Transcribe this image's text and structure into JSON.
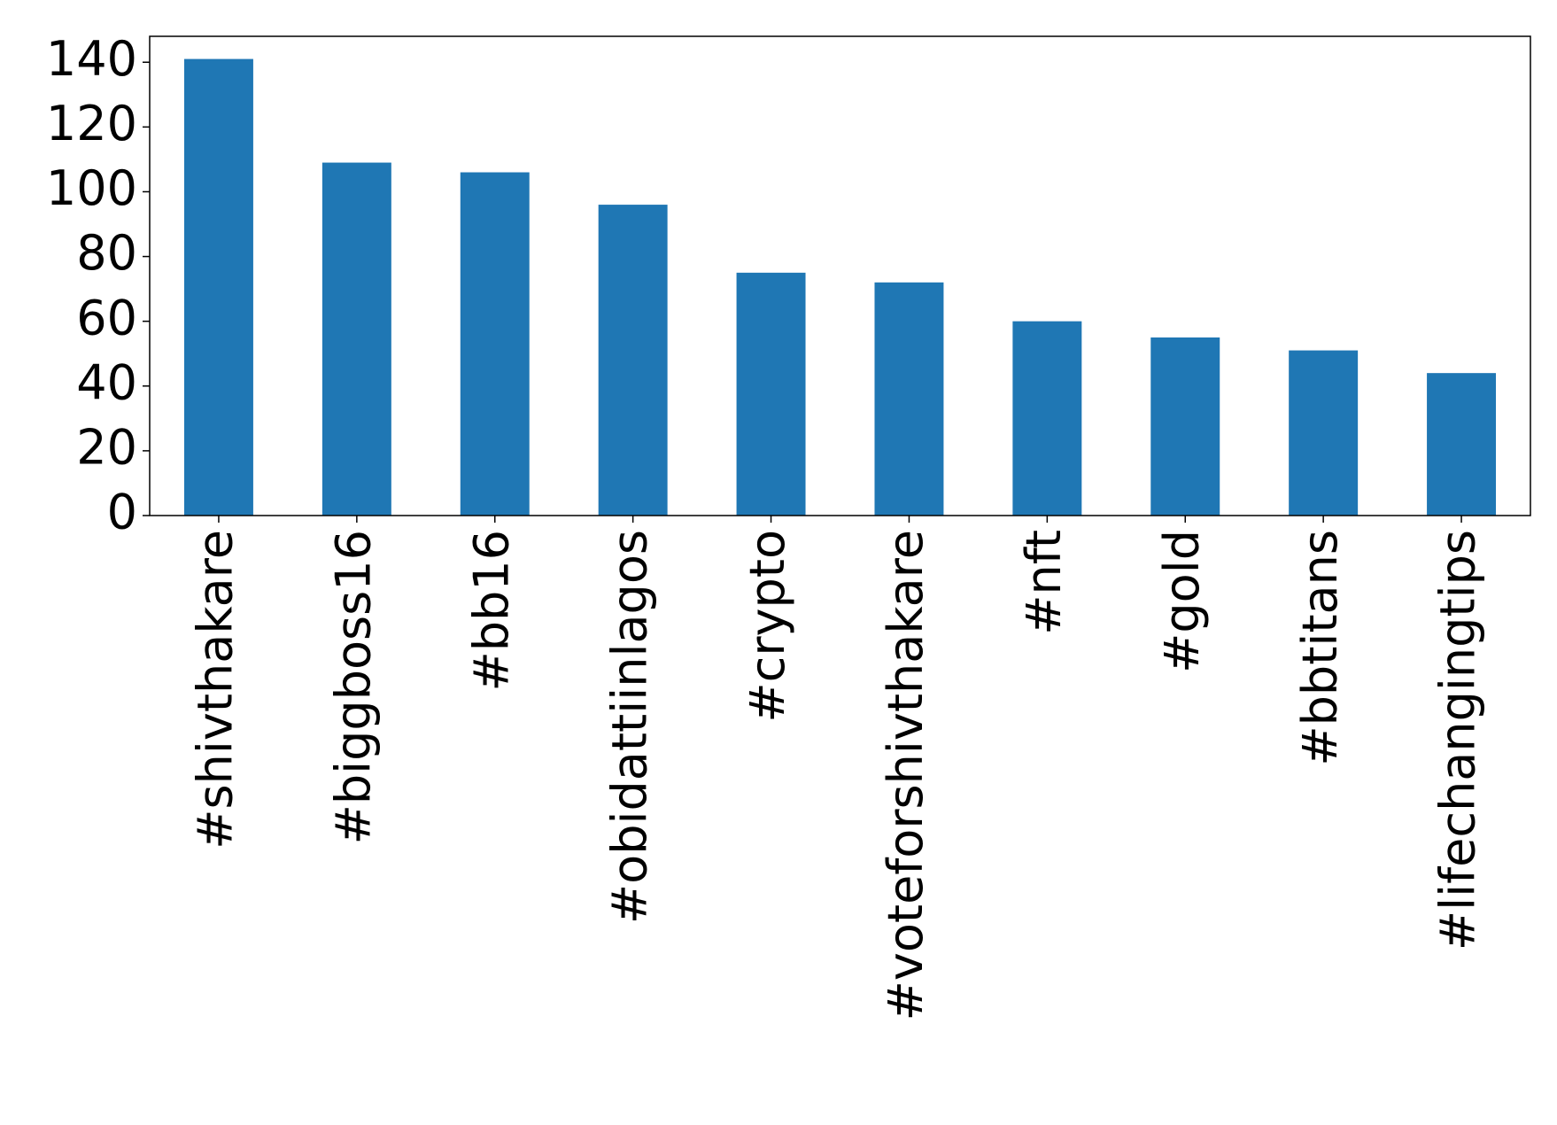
{
  "chart_data": {
    "type": "bar",
    "categories": [
      "#shivthakare",
      "#biggboss16",
      "#bb16",
      "#obidattiinlagos",
      "#crypto",
      "#voteforshivthakare",
      "#nft",
      "#gold",
      "#bbtitans",
      "#lifechangingtips"
    ],
    "values": [
      141,
      109,
      106,
      96,
      75,
      72,
      60,
      55,
      51,
      44
    ],
    "color": "#1f77b4",
    "ylim": [
      0,
      148
    ],
    "yticks": [
      0,
      20,
      40,
      60,
      80,
      100,
      120,
      140
    ],
    "grid": false
  }
}
